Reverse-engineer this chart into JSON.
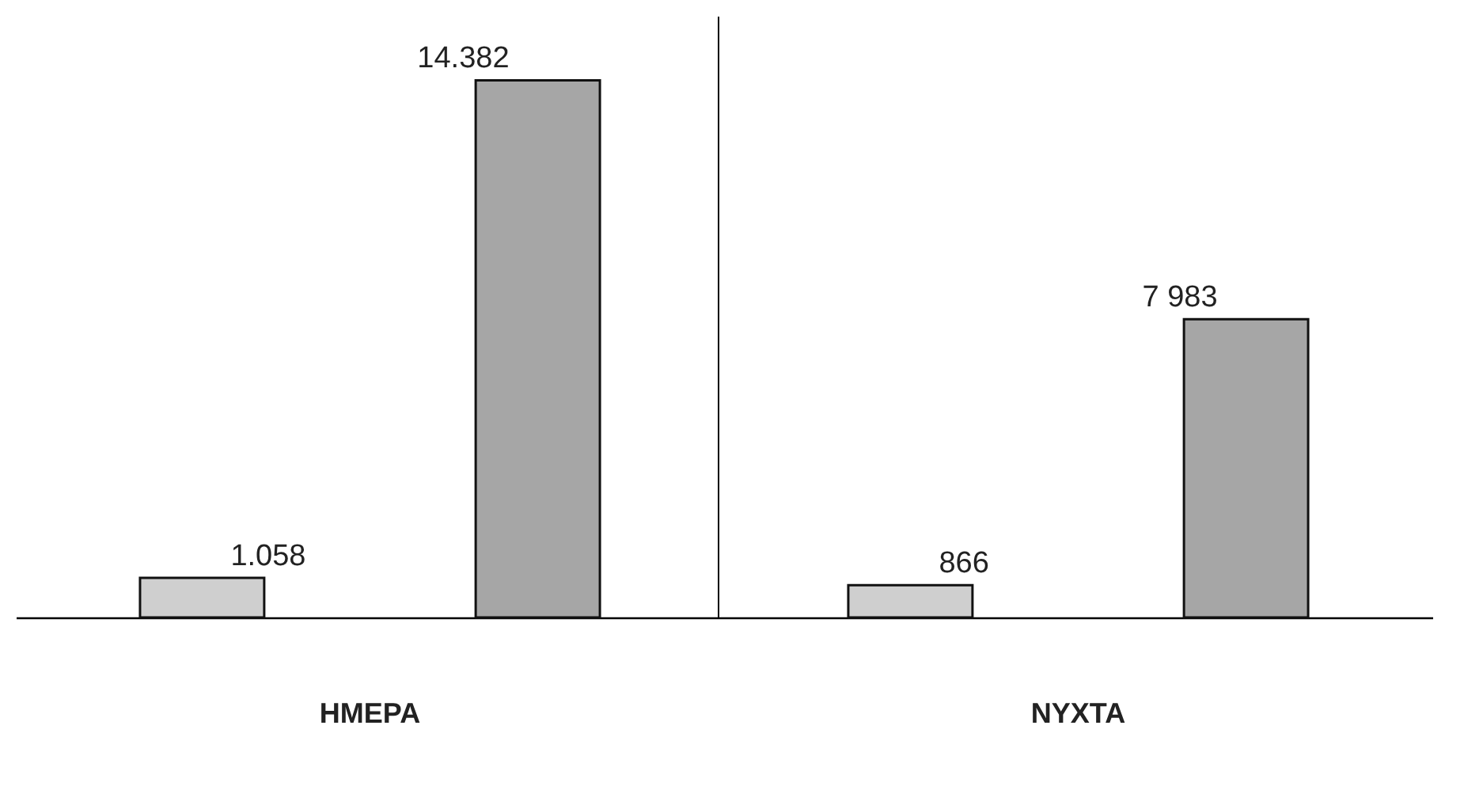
{
  "chart_data": {
    "type": "bar",
    "categories": [
      "ΗΜΕΡΑ",
      "ΝΥΧΤΑ"
    ],
    "series": [
      {
        "color": "#cfcfcf",
        "values": [
          1058,
          866
        ],
        "value_labels": [
          "1.058",
          "866"
        ]
      },
      {
        "color": "#a6a6a6",
        "values": [
          14382,
          7983
        ],
        "value_labels": [
          "14.382",
          "7 983"
        ]
      }
    ],
    "grid": false,
    "legend": false
  }
}
